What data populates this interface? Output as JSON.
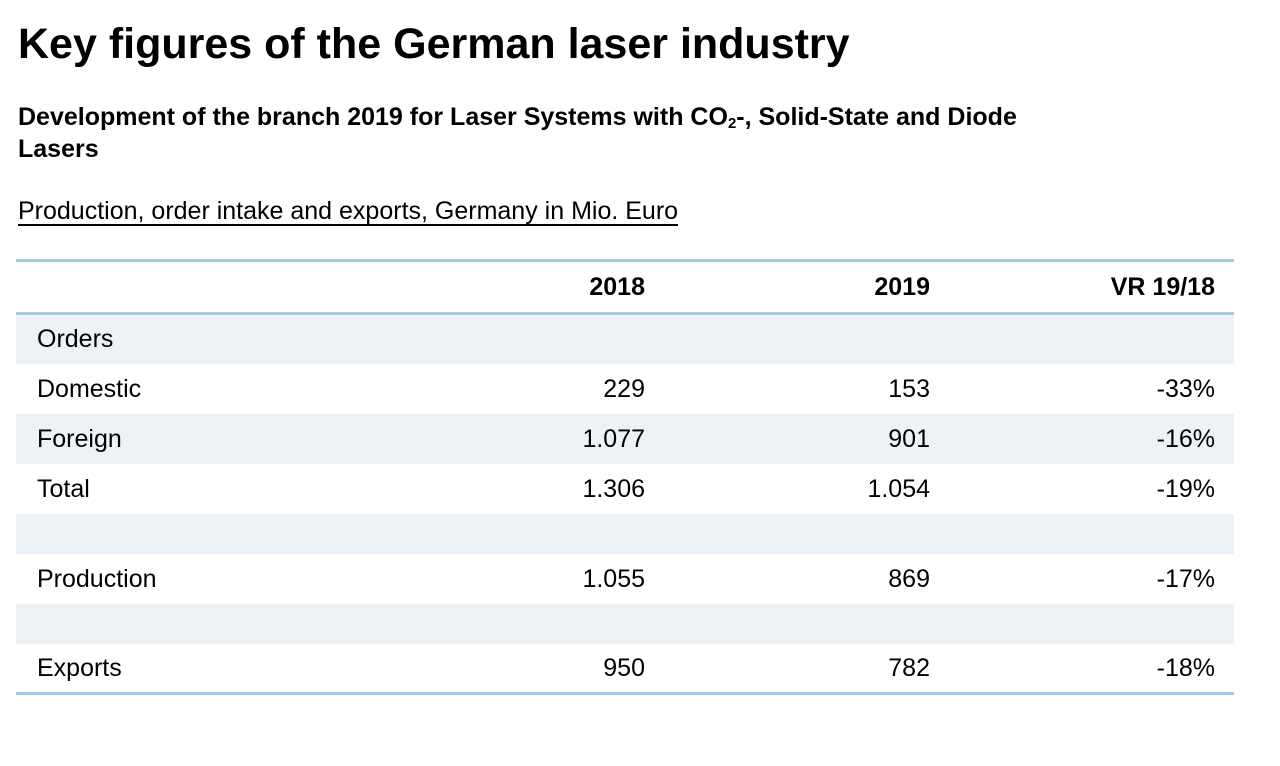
{
  "title": "Key figures of the German laser industry",
  "subtitle": {
    "part1": "Development of the branch 2019 for Laser Systems with CO",
    "subscript": "2",
    "part2": "-, Solid-State and Diode Lasers"
  },
  "caption": "Production, order intake and exports, Germany in Mio. Euro",
  "table": {
    "headers": [
      "",
      "2018",
      "2019",
      "VR 19/18"
    ],
    "rows": {
      "orders": {
        "label": "Orders",
        "v2018": "",
        "v2019": "",
        "vr": ""
      },
      "domestic": {
        "label": "Domestic",
        "v2018": "229",
        "v2019": "153",
        "vr": "-33%"
      },
      "foreign": {
        "label": "Foreign",
        "v2018": "1.077",
        "v2019": "901",
        "vr": "-16%"
      },
      "total": {
        "label": "Total",
        "v2018": "1.306",
        "v2019": "1.054",
        "vr": "-19%"
      },
      "production": {
        "label": "Production",
        "v2018": "1.055",
        "v2019": "869",
        "vr": "-17%"
      },
      "exports": {
        "label": "Exports",
        "v2018": "950",
        "v2019": "782",
        "vr": "-18%"
      }
    }
  },
  "colors": {
    "rule": "#a8c8de",
    "row_shade": "#edf2f6",
    "text": "#000000",
    "background": "#ffffff"
  }
}
